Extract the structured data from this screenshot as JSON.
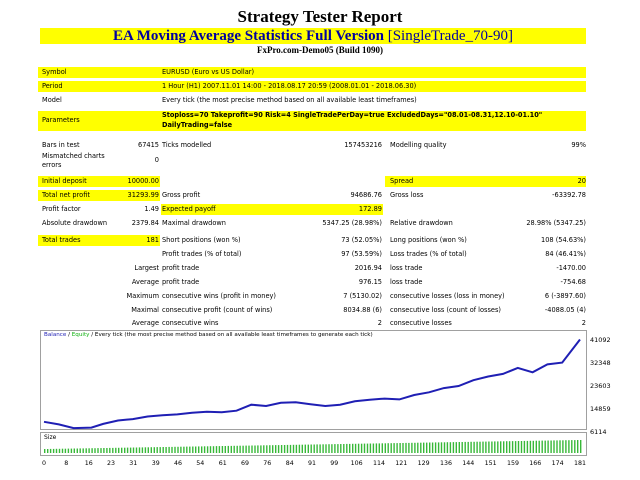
{
  "header": {
    "title": "Strategy Tester Report",
    "ea_name": "EA Moving Average Statistics Full Version",
    "ea_suffix": "[SingleTrade_70-90]",
    "server": "FxPro.com-Demo05 (Build 1090)"
  },
  "info": {
    "symbol_label": "Symbol",
    "symbol_value": "EURUSD (Euro vs US Dollar)",
    "period_label": "Period",
    "period_value": "1 Hour (H1) 2007.11.01 14:00 - 2018.08.17 20:59 (2008.01.01 - 2018.06.30)",
    "model_label": "Model",
    "model_value": "Every tick (the most precise method based on all available least timeframes)",
    "params_label": "Parameters",
    "params_line1": "Stoploss=70 Takeprofit=90 Risk=4 SingleTradePerDay=true ExcludedDays=\"08.01-08.31,12.10-01.10\"",
    "params_line2": "DailyTrading=false"
  },
  "stats": {
    "bars_label": "Bars in test",
    "bars_value": "67415",
    "ticks_label": "Ticks modelled",
    "ticks_value": "157453216",
    "quality_label": "Modelling quality",
    "quality_value": "99%",
    "mismatch_label_1": "Mismatched charts",
    "mismatch_label_2": "errors",
    "mismatch_value": "0",
    "deposit_label": "Initial deposit",
    "deposit_value": "10000.00",
    "spread_label": "Spread",
    "spread_value": "20",
    "netprofit_label": "Total net profit",
    "netprofit_value": "31293.99",
    "grossprofit_label": "Gross profit",
    "grossprofit_value": "94686.76",
    "grossloss_label": "Gross loss",
    "grossloss_value": "-63392.78",
    "pf_label": "Profit factor",
    "pf_value": "1.49",
    "payoff_label": "Expected payoff",
    "payoff_value": "172.89",
    "absdd_label": "Absolute drawdown",
    "absdd_value": "2379.84",
    "maxdd_label": "Maximal drawdown",
    "maxdd_value": "5347.25 (28.98%)",
    "reldd_label": "Relative drawdown",
    "reldd_value": "28.98% (5347.25)",
    "trades_label": "Total trades",
    "trades_value": "181",
    "short_label": "Short positions (won %)",
    "short_value": "73 (52.05%)",
    "long_label": "Long positions (won %)",
    "long_value": "108 (54.63%)",
    "ptrades_label": "Profit trades (% of total)",
    "ptrades_value": "97 (53.59%)",
    "ltrades_label": "Loss trades (% of total)",
    "ltrades_value": "84 (46.41%)",
    "largest": "Largest",
    "largest_profit_label": "profit trade",
    "largest_profit_value": "2016.94",
    "largest_loss_label": "loss trade",
    "largest_loss_value": "-1470.00",
    "average": "Average",
    "avg_profit_label": "profit trade",
    "avg_profit_value": "976.15",
    "avg_loss_label": "loss trade",
    "avg_loss_value": "-754.68",
    "maximum": "Maximum",
    "max_cw_label": "consecutive wins (profit in money)",
    "max_cw_value": "7 (5130.02)",
    "max_cl_label": "consecutive losses (loss in money)",
    "max_cl_value": "6 (-3897.60)",
    "maximal": "Maximal",
    "maximal_cp_label": "consecutive profit (count of wins)",
    "maximal_cp_value": "8034.88 (6)",
    "maximal_cl_label": "consecutive loss (count of losses)",
    "maximal_cl_value": "-4088.05 (4)",
    "average2": "Average",
    "avg_cw_label": "consecutive wins",
    "avg_cw_value": "2",
    "avg_cl_label": "consecutive losses",
    "avg_cl_value": "2"
  },
  "colors": {
    "highlight": "#ffff00",
    "balance_line": "#1f1fb4",
    "size_bars": "#38b838",
    "equity": "#10b010"
  },
  "chart_legend": {
    "balance": "Balance",
    "sep": " / ",
    "equity": "Equity",
    "rest": " / Every tick (the most precise method based on all available least timeframes to generate each tick)"
  },
  "size_label": "Size",
  "chart_data": {
    "type": "line",
    "title": "",
    "series": [
      {
        "name": "Balance",
        "x": [
          0,
          5,
          10,
          16,
          20,
          25,
          30,
          35,
          40,
          45,
          50,
          55,
          60,
          65,
          70,
          75,
          80,
          85,
          90,
          95,
          100,
          105,
          110,
          115,
          120,
          125,
          130,
          135,
          140,
          145,
          150,
          155,
          160,
          165,
          170,
          175,
          181
        ],
        "values": [
          10000,
          9000,
          7600,
          7800,
          9200,
          10500,
          11000,
          12000,
          12500,
          12800,
          13400,
          13800,
          13600,
          14200,
          16500,
          16000,
          17200,
          17400,
          16700,
          16000,
          16500,
          17800,
          18400,
          18800,
          18500,
          20200,
          21200,
          22800,
          23600,
          25800,
          27200,
          28200,
          30500,
          28800,
          31800,
          32500,
          41300
        ]
      }
    ],
    "xticks": [
      "0",
      "8",
      "16",
      "23",
      "31",
      "39",
      "46",
      "54",
      "61",
      "69",
      "76",
      "84",
      "91",
      "99",
      "106",
      "114",
      "121",
      "129",
      "136",
      "144",
      "151",
      "159",
      "166",
      "174",
      "181"
    ],
    "yticks": [
      "41092",
      "32348",
      "23603",
      "14859",
      "6114"
    ],
    "ylim": [
      6114,
      41092
    ],
    "xlim": [
      0,
      181
    ],
    "grid": false,
    "size_series": {
      "name": "Size",
      "trend": "increasing",
      "start": 1,
      "end": 10
    }
  }
}
